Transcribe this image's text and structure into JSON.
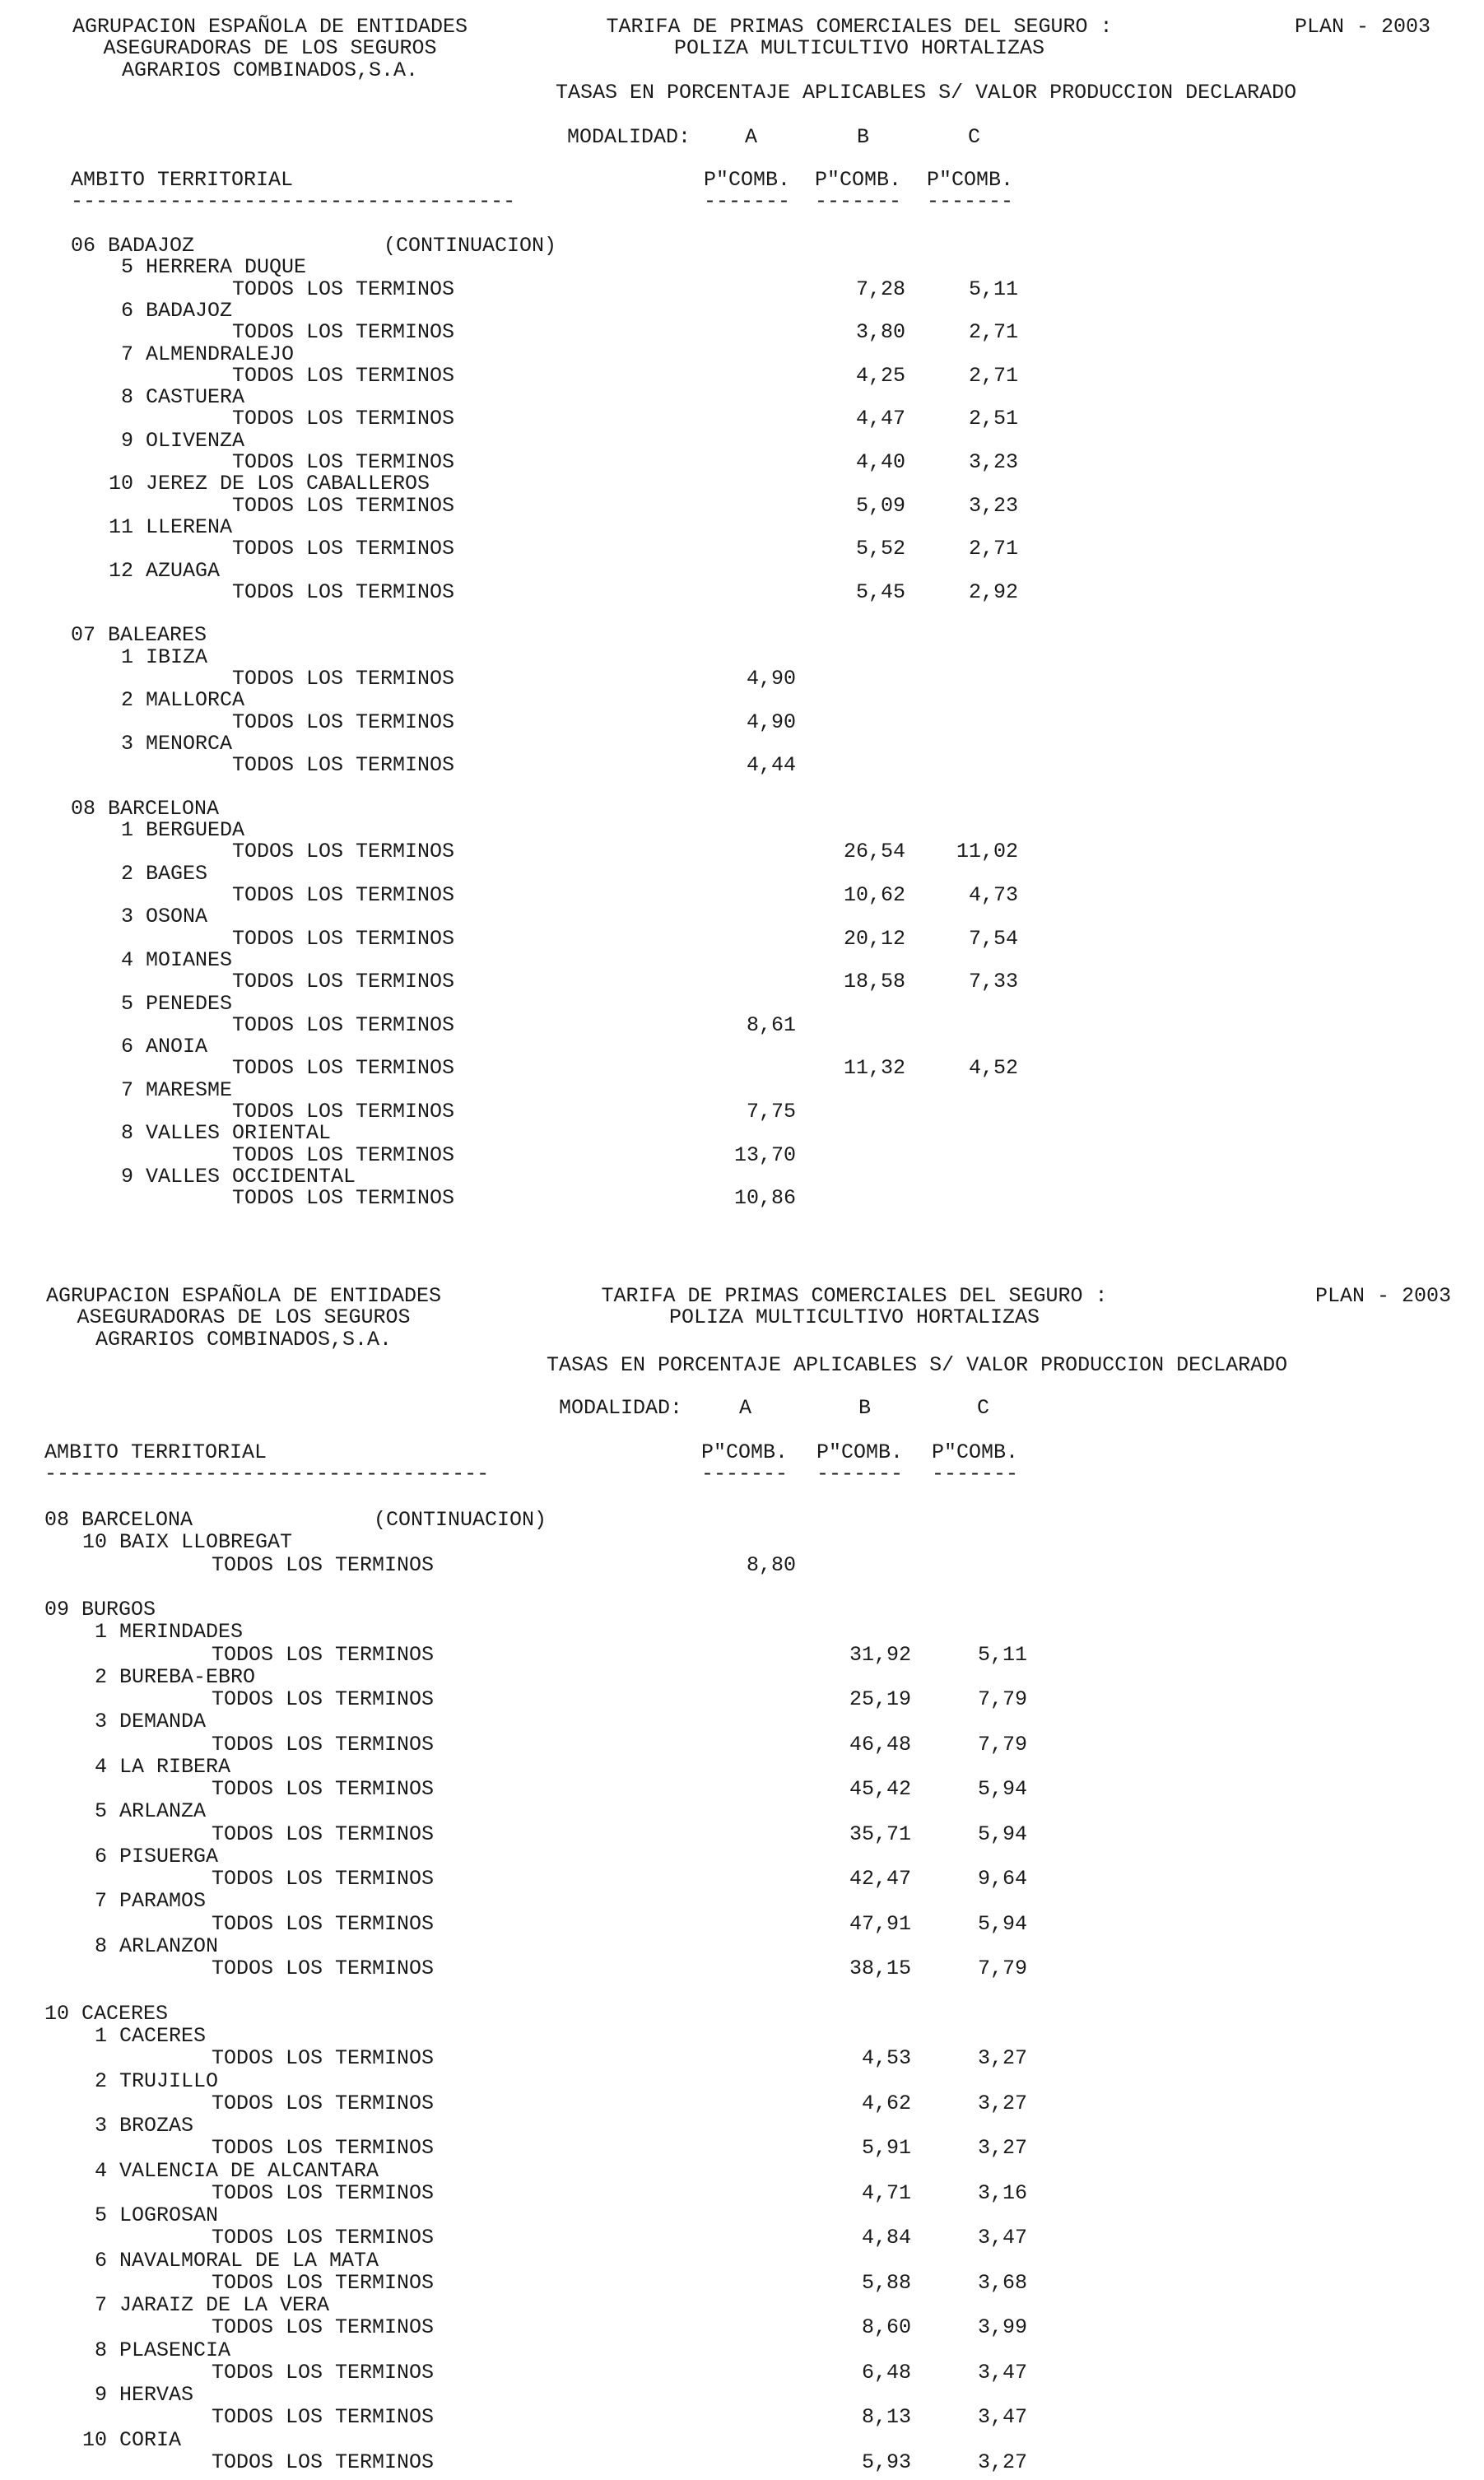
{
  "pages": [
    {
      "header": {
        "org_lines": [
          "AGRUPACION ESPAÑOLA DE ENTIDADES",
          "ASEGURADORAS DE LOS SEGUROS",
          "AGRARIOS COMBINADOS,S.A."
        ],
        "title_lines": [
          "TARIFA DE PRIMAS COMERCIALES DEL SEGURO :",
          "POLIZA MULTICULTIVO HORTALIZAS"
        ],
        "plan": "PLAN - 2003",
        "subtitle": "TASAS EN PORCENTAJE APLICABLES S/ VALOR PRODUCCION DECLARADO",
        "modalidad_label": "MODALIDAD:",
        "modalidades": [
          "A",
          "B",
          "C"
        ],
        "ambito_label": "AMBITO TERRITORIAL",
        "col_headers": [
          "P\"COMB.",
          "P\"COMB.",
          "P\"COMB."
        ],
        "ambito_dashes": "------------------------------------",
        "col_dashes": [
          "-------",
          "-------",
          "-------"
        ]
      },
      "provinces": [
        {
          "label": "06 BADAJOZ",
          "note": "(CONTINUACION)",
          "districts": [
            {
              "label": "5 HERRERA DUQUE",
              "terms": "TODOS LOS TERMINOS",
              "a": "",
              "b": "7,28",
              "c": "5,11"
            },
            {
              "label": "6 BADAJOZ",
              "terms": "TODOS LOS TERMINOS",
              "a": "",
              "b": "3,80",
              "c": "2,71"
            },
            {
              "label": "7 ALMENDRALEJO",
              "terms": "TODOS LOS TERMINOS",
              "a": "",
              "b": "4,25",
              "c": "2,71"
            },
            {
              "label": "8 CASTUERA",
              "terms": "TODOS LOS TERMINOS",
              "a": "",
              "b": "4,47",
              "c": "2,51"
            },
            {
              "label": "9 OLIVENZA",
              "terms": "TODOS LOS TERMINOS",
              "a": "",
              "b": "4,40",
              "c": "3,23"
            },
            {
              "label": "10 JEREZ DE LOS CABALLEROS",
              "terms": "TODOS LOS TERMINOS",
              "a": "",
              "b": "5,09",
              "c": "3,23"
            },
            {
              "label": "11 LLERENA",
              "terms": "TODOS LOS TERMINOS",
              "a": "",
              "b": "5,52",
              "c": "2,71"
            },
            {
              "label": "12 AZUAGA",
              "terms": "TODOS LOS TERMINOS",
              "a": "",
              "b": "5,45",
              "c": "2,92"
            }
          ]
        },
        {
          "label": "07 BALEARES",
          "note": "",
          "districts": [
            {
              "label": "1 IBIZA",
              "terms": "TODOS LOS TERMINOS",
              "a": "4,90",
              "b": "",
              "c": ""
            },
            {
              "label": "2 MALLORCA",
              "terms": "TODOS LOS TERMINOS",
              "a": "4,90",
              "b": "",
              "c": ""
            },
            {
              "label": "3 MENORCA",
              "terms": "TODOS LOS TERMINOS",
              "a": "4,44",
              "b": "",
              "c": ""
            }
          ]
        },
        {
          "label": "08 BARCELONA",
          "note": "",
          "districts": [
            {
              "label": "1 BERGUEDA",
              "terms": "TODOS LOS TERMINOS",
              "a": "",
              "b": "26,54",
              "c": "11,02"
            },
            {
              "label": "2 BAGES",
              "terms": "TODOS LOS TERMINOS",
              "a": "",
              "b": "10,62",
              "c": "4,73"
            },
            {
              "label": "3 OSONA",
              "terms": "TODOS LOS TERMINOS",
              "a": "",
              "b": "20,12",
              "c": "7,54"
            },
            {
              "label": "4 MOIANES",
              "terms": "TODOS LOS TERMINOS",
              "a": "",
              "b": "18,58",
              "c": "7,33"
            },
            {
              "label": "5 PENEDES",
              "terms": "TODOS LOS TERMINOS",
              "a": "8,61",
              "b": "",
              "c": ""
            },
            {
              "label": "6 ANOIA",
              "terms": "TODOS LOS TERMINOS",
              "a": "",
              "b": "11,32",
              "c": "4,52"
            },
            {
              "label": "7 MARESME",
              "terms": "TODOS LOS TERMINOS",
              "a": "7,75",
              "b": "",
              "c": ""
            },
            {
              "label": "8 VALLES ORIENTAL",
              "terms": "TODOS LOS TERMINOS",
              "a": "13,70",
              "b": "",
              "c": ""
            },
            {
              "label": "9 VALLES OCCIDENTAL",
              "terms": "TODOS LOS TERMINOS",
              "a": "10,86",
              "b": "",
              "c": ""
            }
          ]
        }
      ]
    },
    {
      "header": {
        "org_lines": [
          "AGRUPACION ESPAÑOLA DE ENTIDADES",
          "ASEGURADORAS DE LOS SEGUROS",
          "AGRARIOS COMBINADOS,S.A."
        ],
        "title_lines": [
          "TARIFA DE PRIMAS COMERCIALES DEL SEGURO :",
          "POLIZA MULTICULTIVO HORTALIZAS"
        ],
        "plan": "PLAN - 2003",
        "subtitle": "TASAS EN PORCENTAJE APLICABLES S/ VALOR PRODUCCION DECLARADO",
        "modalidad_label": "MODALIDAD:",
        "modalidades": [
          "A",
          "B",
          "C"
        ],
        "ambito_label": "AMBITO TERRITORIAL",
        "col_headers": [
          "P\"COMB.",
          "P\"COMB.",
          "P\"COMB."
        ],
        "ambito_dashes": "------------------------------------",
        "col_dashes": [
          "-------",
          "-------",
          "-------"
        ]
      },
      "provinces": [
        {
          "label": "08 BARCELONA",
          "note": "(CONTINUACION)",
          "districts": [
            {
              "label": "10 BAIX LLOBREGAT",
              "terms": "TODOS LOS TERMINOS",
              "a": "8,80",
              "b": "",
              "c": ""
            }
          ]
        },
        {
          "label": "09 BURGOS",
          "note": "",
          "districts": [
            {
              "label": "1 MERINDADES",
              "terms": "TODOS LOS TERMINOS",
              "a": "",
              "b": "31,92",
              "c": "5,11"
            },
            {
              "label": "2 BUREBA-EBRO",
              "terms": "TODOS LOS TERMINOS",
              "a": "",
              "b": "25,19",
              "c": "7,79"
            },
            {
              "label": "3 DEMANDA",
              "terms": "TODOS LOS TERMINOS",
              "a": "",
              "b": "46,48",
              "c": "7,79"
            },
            {
              "label": "4 LA RIBERA",
              "terms": "TODOS LOS TERMINOS",
              "a": "",
              "b": "45,42",
              "c": "5,94"
            },
            {
              "label": "5 ARLANZA",
              "terms": "TODOS LOS TERMINOS",
              "a": "",
              "b": "35,71",
              "c": "5,94"
            },
            {
              "label": "6 PISUERGA",
              "terms": "TODOS LOS TERMINOS",
              "a": "",
              "b": "42,47",
              "c": "9,64"
            },
            {
              "label": "7 PARAMOS",
              "terms": "TODOS LOS TERMINOS",
              "a": "",
              "b": "47,91",
              "c": "5,94"
            },
            {
              "label": "8 ARLANZON",
              "terms": "TODOS LOS TERMINOS",
              "a": "",
              "b": "38,15",
              "c": "7,79"
            }
          ]
        },
        {
          "label": "10 CACERES",
          "note": "",
          "districts": [
            {
              "label": "1 CACERES",
              "terms": "TODOS LOS TERMINOS",
              "a": "",
              "b": "4,53",
              "c": "3,27"
            },
            {
              "label": "2 TRUJILLO",
              "terms": "TODOS LOS TERMINOS",
              "a": "",
              "b": "4,62",
              "c": "3,27"
            },
            {
              "label": "3 BROZAS",
              "terms": "TODOS LOS TERMINOS",
              "a": "",
              "b": "5,91",
              "c": "3,27"
            },
            {
              "label": "4 VALENCIA DE ALCANTARA",
              "terms": "TODOS LOS TERMINOS",
              "a": "",
              "b": "4,71",
              "c": "3,16"
            },
            {
              "label": "5 LOGROSAN",
              "terms": "TODOS LOS TERMINOS",
              "a": "",
              "b": "4,84",
              "c": "3,47"
            },
            {
              "label": "6 NAVALMORAL DE LA MATA",
              "terms": "TODOS LOS TERMINOS",
              "a": "",
              "b": "5,88",
              "c": "3,68"
            },
            {
              "label": "7 JARAIZ DE LA VERA",
              "terms": "TODOS LOS TERMINOS",
              "a": "",
              "b": "8,60",
              "c": "3,99"
            },
            {
              "label": "8 PLASENCIA",
              "terms": "TODOS LOS TERMINOS",
              "a": "",
              "b": "6,48",
              "c": "3,47"
            },
            {
              "label": "9 HERVAS",
              "terms": "TODOS LOS TERMINOS",
              "a": "",
              "b": "8,13",
              "c": "3,47"
            },
            {
              "label": "10 CORIA",
              "terms": "TODOS LOS TERMINOS",
              "a": "",
              "b": "5,93",
              "c": "3,27"
            }
          ]
        }
      ]
    }
  ]
}
